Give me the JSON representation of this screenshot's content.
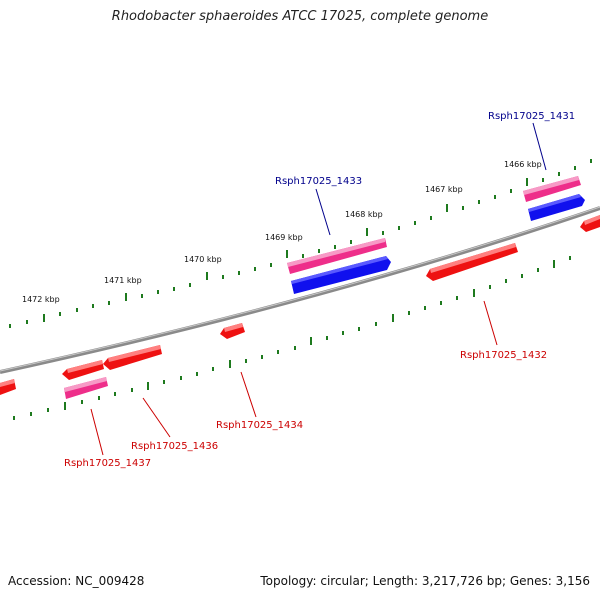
{
  "title": "Rhodobacter sphaeroides ATCC 17025, complete genome",
  "footer": {
    "accession": "Accession: NC_009428",
    "topology": "Topology: circular; Length: 3,217,726 bp; Genes: 3,156"
  },
  "colors": {
    "backbone": "#8a8a8a",
    "tick": "#1e7a1e",
    "gene_red": "#ee1111",
    "gene_pink": "#ee2e8a",
    "gene_blue": "#1010ee",
    "label_red": "#cc0000",
    "label_blue": "#00008b"
  },
  "scale": {
    "outer": [
      "1472 kbp",
      "1471 kbp",
      "1470 kbp",
      "1469 kbp",
      "1468 kbp",
      "1467 kbp",
      "1466 kbp"
    ]
  },
  "gene_labels": {
    "g1431": "Rsph17025_1431",
    "g1432": "Rsph17025_1432",
    "g1433": "Rsph17025_1433",
    "g1434": "Rsph17025_1434",
    "g1436": "Rsph17025_1436",
    "g1437": "Rsph17025_1437"
  }
}
